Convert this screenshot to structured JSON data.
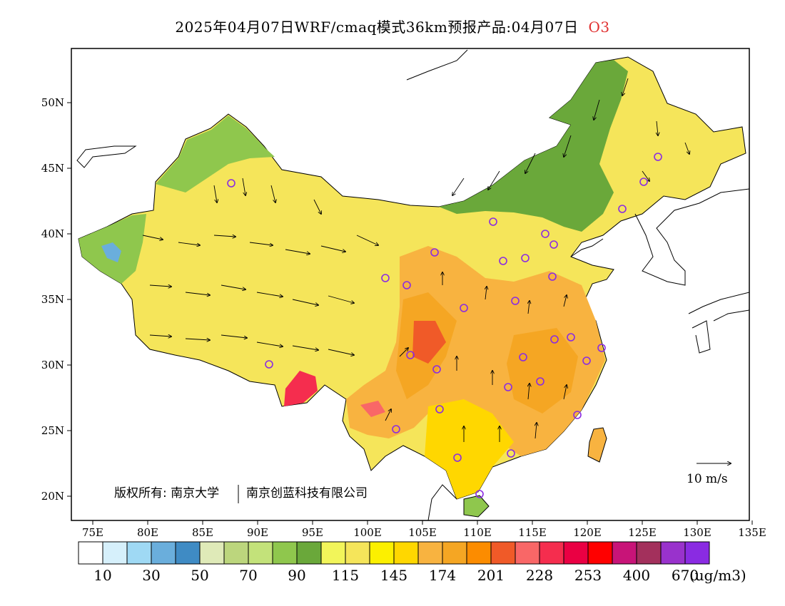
{
  "title": {
    "main": "2025年04月07日WRF/cmaq模式36km预报产品:04月07日",
    "species": "O3"
  },
  "axes": {
    "lon_labels": [
      "75E",
      "80E",
      "85E",
      "90E",
      "95E",
      "100E",
      "105E",
      "110E",
      "115E",
      "120E",
      "125E",
      "130E",
      "135E"
    ],
    "lat_labels": [
      "50N",
      "45N",
      "40N",
      "35N",
      "30N",
      "25N",
      "20N"
    ]
  },
  "copyright": {
    "left": "版权所有: 南京大学",
    "right": "南京创蓝科技有限公司"
  },
  "wind_scale": {
    "label": "10 m/s"
  },
  "legend": {
    "colors": [
      "#ffffff",
      "#d6f0fb",
      "#9fd9f4",
      "#6aaedc",
      "#3f8bc4",
      "#dfeab8",
      "#bcd67d",
      "#c3e27a",
      "#8fc74d",
      "#6aa83a",
      "#f2f55a",
      "#f5e55a",
      "#fcf000",
      "#ffd700",
      "#f8b340",
      "#f5a623",
      "#fc8c00",
      "#f05a28",
      "#f96767",
      "#f52d4e",
      "#ea0043",
      "#ff0000",
      "#c81478",
      "#a3305c",
      "#9932cc",
      "#8a2be2"
    ],
    "labels": [
      "10",
      "30",
      "50",
      "70",
      "90",
      "115",
      "145",
      "174",
      "201",
      "228",
      "253",
      "400",
      "670"
    ],
    "unit": "(ug/m3)"
  },
  "colors": {
    "frame": "#000000",
    "station_marker": "#8a2be2",
    "title_species": "#e03030"
  }
}
